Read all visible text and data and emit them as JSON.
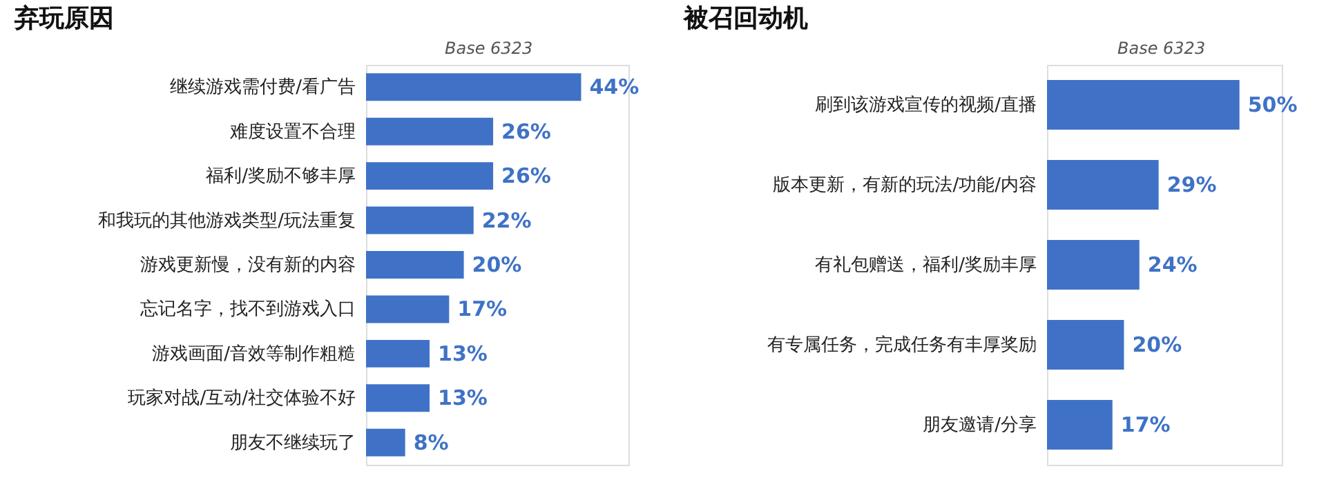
{
  "chart_data": [
    {
      "type": "bar",
      "orientation": "horizontal",
      "title": "弃玩原因",
      "annotations": [
        "Base  6323"
      ],
      "categories": [
        "继续游戏需付费/看广告",
        "难度设置不合理",
        "福利/奖励不够丰厚",
        "和我玩的其他游戏类型/玩法重复",
        "游戏更新慢，没有新的内容",
        "忘记名字，找不到游戏入口",
        "游戏画面/音效等制作粗糙",
        "玩家对战/互动/社交体验不好",
        "朋友不继续玩了"
      ],
      "values": [
        44,
        26,
        26,
        22,
        20,
        17,
        13,
        13,
        8
      ],
      "value_labels": [
        "44%",
        "26%",
        "26%",
        "22%",
        "20%",
        "17%",
        "13%",
        "13%",
        "8%"
      ],
      "color": "#3f72c6"
    },
    {
      "type": "bar",
      "orientation": "horizontal",
      "title": "被召回动机",
      "annotations": [
        "Base  6323"
      ],
      "categories": [
        "刷到该游戏宣传的视频/直播",
        "版本更新，有新的玩法/功能/内容",
        "有礼包赠送，福利/奖励丰厚",
        "有专属任务，完成任务有丰厚奖励",
        "朋友邀请/分享"
      ],
      "values": [
        50,
        29,
        24,
        20,
        17
      ],
      "value_labels": [
        "50%",
        "29%",
        "24%",
        "20%",
        "17%"
      ],
      "color": "#3f72c6"
    }
  ]
}
